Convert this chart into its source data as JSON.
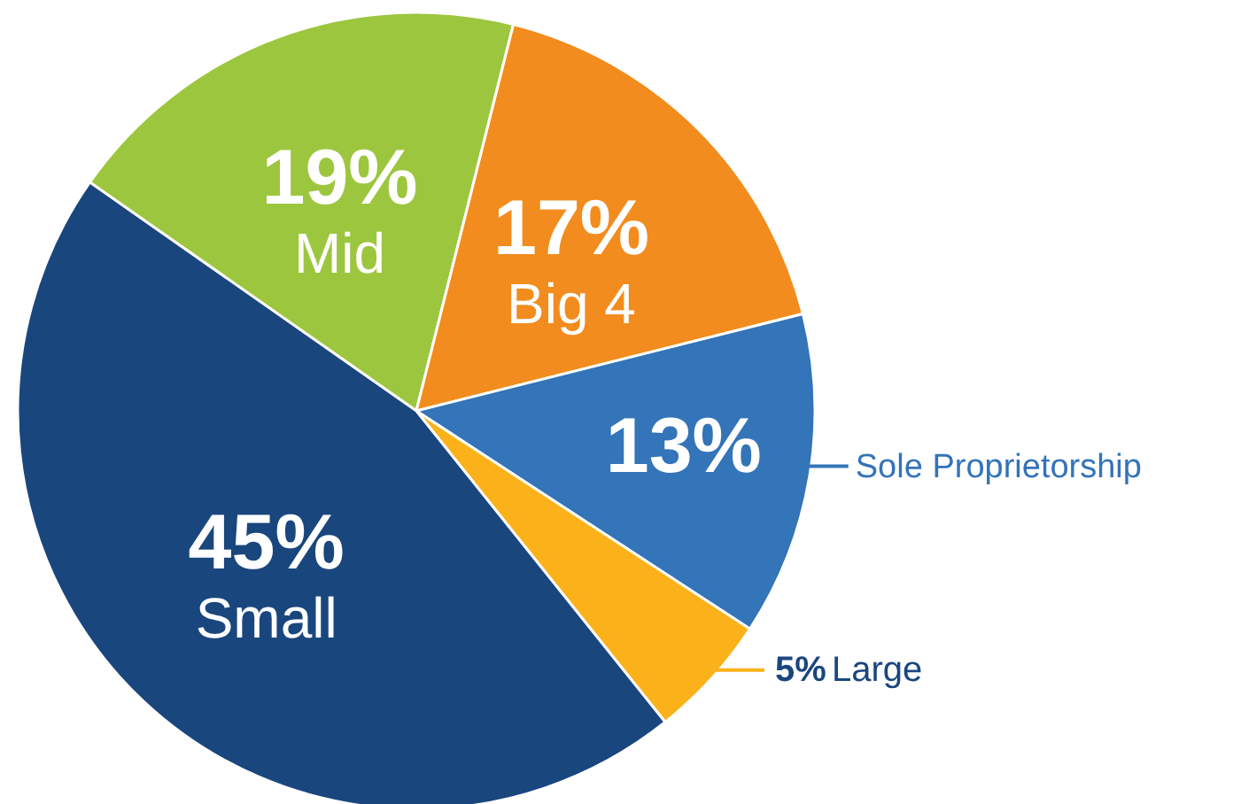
{
  "chart_data": {
    "type": "pie",
    "categories": [
      "Mid",
      "Big 4",
      "Sole Proprietorship",
      "Large",
      "Small"
    ],
    "values": [
      19,
      17,
      13,
      5,
      45
    ],
    "colors": [
      "#9dc63f",
      "#f28c1e",
      "#3474b8",
      "#fbb21a",
      "#1a467e"
    ],
    "value_labels": [
      "19%",
      "17%",
      "13%",
      "5%",
      "45%"
    ]
  }
}
